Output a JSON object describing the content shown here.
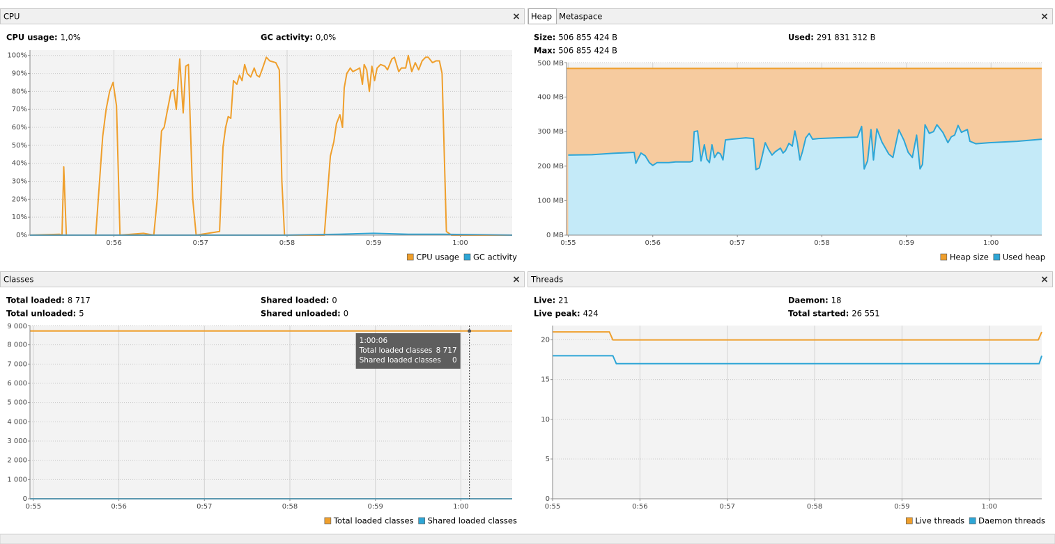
{
  "panels": [
    {
      "tabs": [
        "CPU"
      ],
      "stats": [
        [
          [
            "CPU usage:",
            "1,0%"
          ]
        ],
        [
          [
            "GC activity:",
            "0,0%"
          ]
        ]
      ]
    },
    {
      "tabs": [
        "Heap",
        "Metaspace"
      ],
      "stats": [
        [
          [
            "Size:",
            "506 855 424 B"
          ],
          [
            "Max:",
            "506 855 424 B"
          ]
        ],
        [
          [
            "Used:",
            "291 831 312 B"
          ]
        ]
      ]
    },
    {
      "tabs": [
        "Classes"
      ],
      "stats": [
        [
          [
            "Total loaded:",
            "8 717"
          ],
          [
            "Total unloaded:",
            "5"
          ]
        ],
        [
          [
            "Shared loaded:",
            "0"
          ],
          [
            "Shared unloaded:",
            "0"
          ]
        ]
      ]
    },
    {
      "tabs": [
        "Threads"
      ],
      "stats": [
        [
          [
            "Live:",
            "21"
          ],
          [
            "Live peak:",
            "424"
          ]
        ],
        [
          [
            "Daemon:",
            "18"
          ],
          [
            "Total started:",
            "26 551"
          ]
        ]
      ]
    }
  ],
  "chart_data": [
    {
      "type": "line",
      "area": false,
      "grid": true,
      "legend": "bottom-right",
      "xlim": [
        55.03,
        60.6
      ],
      "ylim": [
        0,
        103
      ],
      "xticks": [
        {
          "value": 56,
          "label": "0:56"
        },
        {
          "value": 57,
          "label": "0:57"
        },
        {
          "value": 58,
          "label": "0:58"
        },
        {
          "value": 59,
          "label": "0:59"
        },
        {
          "value": 60,
          "label": "1:00"
        }
      ],
      "yticks": [
        {
          "value": 0,
          "label": "0%"
        },
        {
          "value": 10,
          "label": "10%"
        },
        {
          "value": 20,
          "label": "20%"
        },
        {
          "value": 30,
          "label": "30%"
        },
        {
          "value": 40,
          "label": "40%"
        },
        {
          "value": 50,
          "label": "50%"
        },
        {
          "value": 60,
          "label": "60%"
        },
        {
          "value": 70,
          "label": "70%"
        },
        {
          "value": 80,
          "label": "80%"
        },
        {
          "value": 90,
          "label": "90%"
        },
        {
          "value": 100,
          "label": "100%"
        }
      ],
      "series": [
        {
          "name": "CPU usage",
          "color": "#ef9f2c",
          "x": [
            55.03,
            55.37,
            55.4,
            55.42,
            55.45,
            55.79,
            55.87,
            55.91,
            55.95,
            55.99,
            56.03,
            56.07,
            56.34,
            56.46,
            56.5,
            56.55,
            56.58,
            56.62,
            56.66,
            56.69,
            56.72,
            56.76,
            56.8,
            56.83,
            56.86,
            56.91,
            56.95,
            57.22,
            57.26,
            57.29,
            57.32,
            57.35,
            57.38,
            57.42,
            57.45,
            57.48,
            57.51,
            57.54,
            57.58,
            57.62,
            57.65,
            57.68,
            57.71,
            57.76,
            57.8,
            57.87,
            57.91,
            57.94,
            57.97,
            58.43,
            58.5,
            58.54,
            58.57,
            58.61,
            58.64,
            58.66,
            58.69,
            58.73,
            58.76,
            58.8,
            58.84,
            58.87,
            58.89,
            58.92,
            58.95,
            58.98,
            59.01,
            59.04,
            59.08,
            59.13,
            59.16,
            59.21,
            59.24,
            59.29,
            59.32,
            59.37,
            59.4,
            59.44,
            59.48,
            59.52,
            59.56,
            59.6,
            59.63,
            59.68,
            59.72,
            59.76,
            59.79,
            59.84,
            59.9,
            60.6
          ],
          "values": [
            0,
            0.5,
            0,
            38,
            0,
            0,
            55,
            70,
            80,
            85,
            72,
            0,
            1,
            0,
            20,
            58,
            60,
            70,
            80,
            81,
            70,
            98,
            68,
            94,
            95,
            20,
            0,
            2,
            49,
            60,
            66,
            65,
            86,
            84,
            89,
            86,
            95,
            90,
            88,
            93,
            89,
            88,
            92,
            99,
            97,
            96,
            92,
            30,
            0,
            0,
            44,
            52,
            62,
            67,
            60,
            82,
            90,
            93,
            91,
            92,
            93,
            84,
            95,
            92,
            80,
            94,
            86,
            93,
            95,
            94,
            92,
            98,
            99,
            91,
            93,
            93,
            100,
            91,
            96,
            92,
            97,
            99,
            99,
            96,
            97,
            97,
            90,
            2,
            0,
            0
          ]
        },
        {
          "name": "GC activity",
          "color": "#2ea6d6",
          "x": [
            55.03,
            58.0,
            58.6,
            59.0,
            59.4,
            59.8,
            60.6
          ],
          "values": [
            0,
            0,
            0.5,
            1,
            0.5,
            0.5,
            0
          ]
        }
      ]
    },
    {
      "type": "line",
      "area": true,
      "grid": true,
      "legend": "bottom-right",
      "xlim": [
        54.98,
        60.6
      ],
      "ylim": [
        0,
        500
      ],
      "xticks": [
        {
          "value": 55,
          "label": "0:55"
        },
        {
          "value": 56,
          "label": "0:56"
        },
        {
          "value": 57,
          "label": "0:57"
        },
        {
          "value": 58,
          "label": "0:58"
        },
        {
          "value": 59,
          "label": "0:59"
        },
        {
          "value": 60,
          "label": "1:00"
        }
      ],
      "yticks": [
        {
          "value": 0,
          "label": "0 MB"
        },
        {
          "value": 100,
          "label": "100 MB"
        },
        {
          "value": 200,
          "label": "200 MB"
        },
        {
          "value": 300,
          "label": "300 MB"
        },
        {
          "value": 400,
          "label": "400 MB"
        },
        {
          "value": 500,
          "label": "500 MB"
        }
      ],
      "series": [
        {
          "name": "Heap size",
          "color": "#ef9f2c",
          "fill": "#f6cb9f",
          "x": [
            54.98,
            60.6
          ],
          "values": [
            483,
            483
          ]
        },
        {
          "name": "Used heap",
          "color": "#2ea6d6",
          "fill": "#c4eaf8",
          "x": [
            55.0,
            55.28,
            55.53,
            55.78,
            55.8,
            55.86,
            55.91,
            55.96,
            56.0,
            56.05,
            56.19,
            56.27,
            56.44,
            56.47,
            56.49,
            56.53,
            56.57,
            56.61,
            56.64,
            56.67,
            56.7,
            56.73,
            56.77,
            56.8,
            56.83,
            56.86,
            56.93,
            57.1,
            57.19,
            57.22,
            57.26,
            57.29,
            57.33,
            57.37,
            57.41,
            57.45,
            57.51,
            57.54,
            57.57,
            57.61,
            57.65,
            57.68,
            57.71,
            57.74,
            57.77,
            57.81,
            57.85,
            57.89,
            57.96,
            58.17,
            58.42,
            58.47,
            58.5,
            58.54,
            58.58,
            58.61,
            58.65,
            58.71,
            58.79,
            58.84,
            58.91,
            58.97,
            59.02,
            59.07,
            59.12,
            59.16,
            59.19,
            59.22,
            59.27,
            59.32,
            59.36,
            59.43,
            59.49,
            59.53,
            59.57,
            59.61,
            59.65,
            59.72,
            59.75,
            59.82,
            59.98,
            60.31,
            60.6
          ],
          "values": [
            232,
            233,
            237,
            240,
            208,
            238,
            230,
            210,
            202,
            210,
            210,
            212,
            212,
            215,
            300,
            302,
            215,
            262,
            220,
            210,
            262,
            225,
            240,
            235,
            218,
            276,
            278,
            282,
            280,
            190,
            195,
            225,
            268,
            248,
            232,
            242,
            252,
            238,
            245,
            266,
            258,
            302,
            268,
            218,
            242,
            282,
            295,
            278,
            280,
            282,
            284,
            315,
            192,
            215,
            306,
            218,
            308,
            270,
            235,
            225,
            305,
            275,
            240,
            225,
            290,
            192,
            205,
            320,
            295,
            300,
            320,
            298,
            268,
            285,
            290,
            318,
            298,
            306,
            272,
            265,
            268,
            272,
            278
          ]
        }
      ]
    },
    {
      "type": "line",
      "area": false,
      "grid": true,
      "legend": "bottom-right",
      "xlim": [
        54.96,
        60.6
      ],
      "ylim": [
        0,
        9000
      ],
      "xticks": [
        {
          "value": 55,
          "label": "0:55"
        },
        {
          "value": 56,
          "label": "0:56"
        },
        {
          "value": 57,
          "label": "0:57"
        },
        {
          "value": 58,
          "label": "0:58"
        },
        {
          "value": 59,
          "label": "0:59"
        },
        {
          "value": 60,
          "label": "1:00"
        }
      ],
      "yticks": [
        0,
        {
          "value": 1000,
          "label": "1 000"
        },
        {
          "value": 2000,
          "label": "2 000"
        },
        {
          "value": 3000,
          "label": "3 000"
        },
        {
          "value": 4000,
          "label": "4 000"
        },
        {
          "value": 5000,
          "label": "5 000"
        },
        {
          "value": 6000,
          "label": "6 000"
        },
        {
          "value": 7000,
          "label": "7 000"
        },
        {
          "value": 8000,
          "label": "8 000"
        },
        {
          "value": 9000,
          "label": "9 000"
        }
      ],
      "series": [
        {
          "name": "Total loaded classes",
          "color": "#ef9f2c",
          "x": [
            54.96,
            60.6
          ],
          "values": [
            8717,
            8717
          ]
        },
        {
          "name": "Shared loaded classes",
          "color": "#2ea6d6",
          "x": [
            54.96,
            60.6
          ],
          "values": [
            0,
            0
          ]
        }
      ],
      "tooltip": {
        "x": 60.1,
        "title": "1:00:06",
        "rows": [
          [
            "Total loaded classes",
            "8 717"
          ],
          [
            "Shared loaded classes",
            "0"
          ]
        ]
      }
    },
    {
      "type": "line",
      "area": false,
      "grid": true,
      "legend": "bottom-right",
      "xlim": [
        55.0,
        60.6
      ],
      "ylim": [
        0,
        21.8
      ],
      "xticks": [
        {
          "value": 55,
          "label": "0:55"
        },
        {
          "value": 56,
          "label": "0:56"
        },
        {
          "value": 57,
          "label": "0:57"
        },
        {
          "value": 58,
          "label": "0:58"
        },
        {
          "value": 59,
          "label": "0:59"
        },
        {
          "value": 60,
          "label": "1:00"
        }
      ],
      "yticks": [
        0,
        5,
        10,
        15,
        20
      ],
      "series": [
        {
          "name": "Live threads",
          "color": "#ef9f2c",
          "x": [
            55.0,
            55.65,
            55.69,
            60.56,
            60.6
          ],
          "values": [
            21,
            21,
            20,
            20,
            21
          ]
        },
        {
          "name": "Daemon threads",
          "color": "#2ea6d6",
          "x": [
            55.0,
            55.69,
            55.73,
            60.57,
            60.6
          ],
          "values": [
            18,
            18,
            17,
            17,
            18
          ]
        }
      ]
    }
  ]
}
